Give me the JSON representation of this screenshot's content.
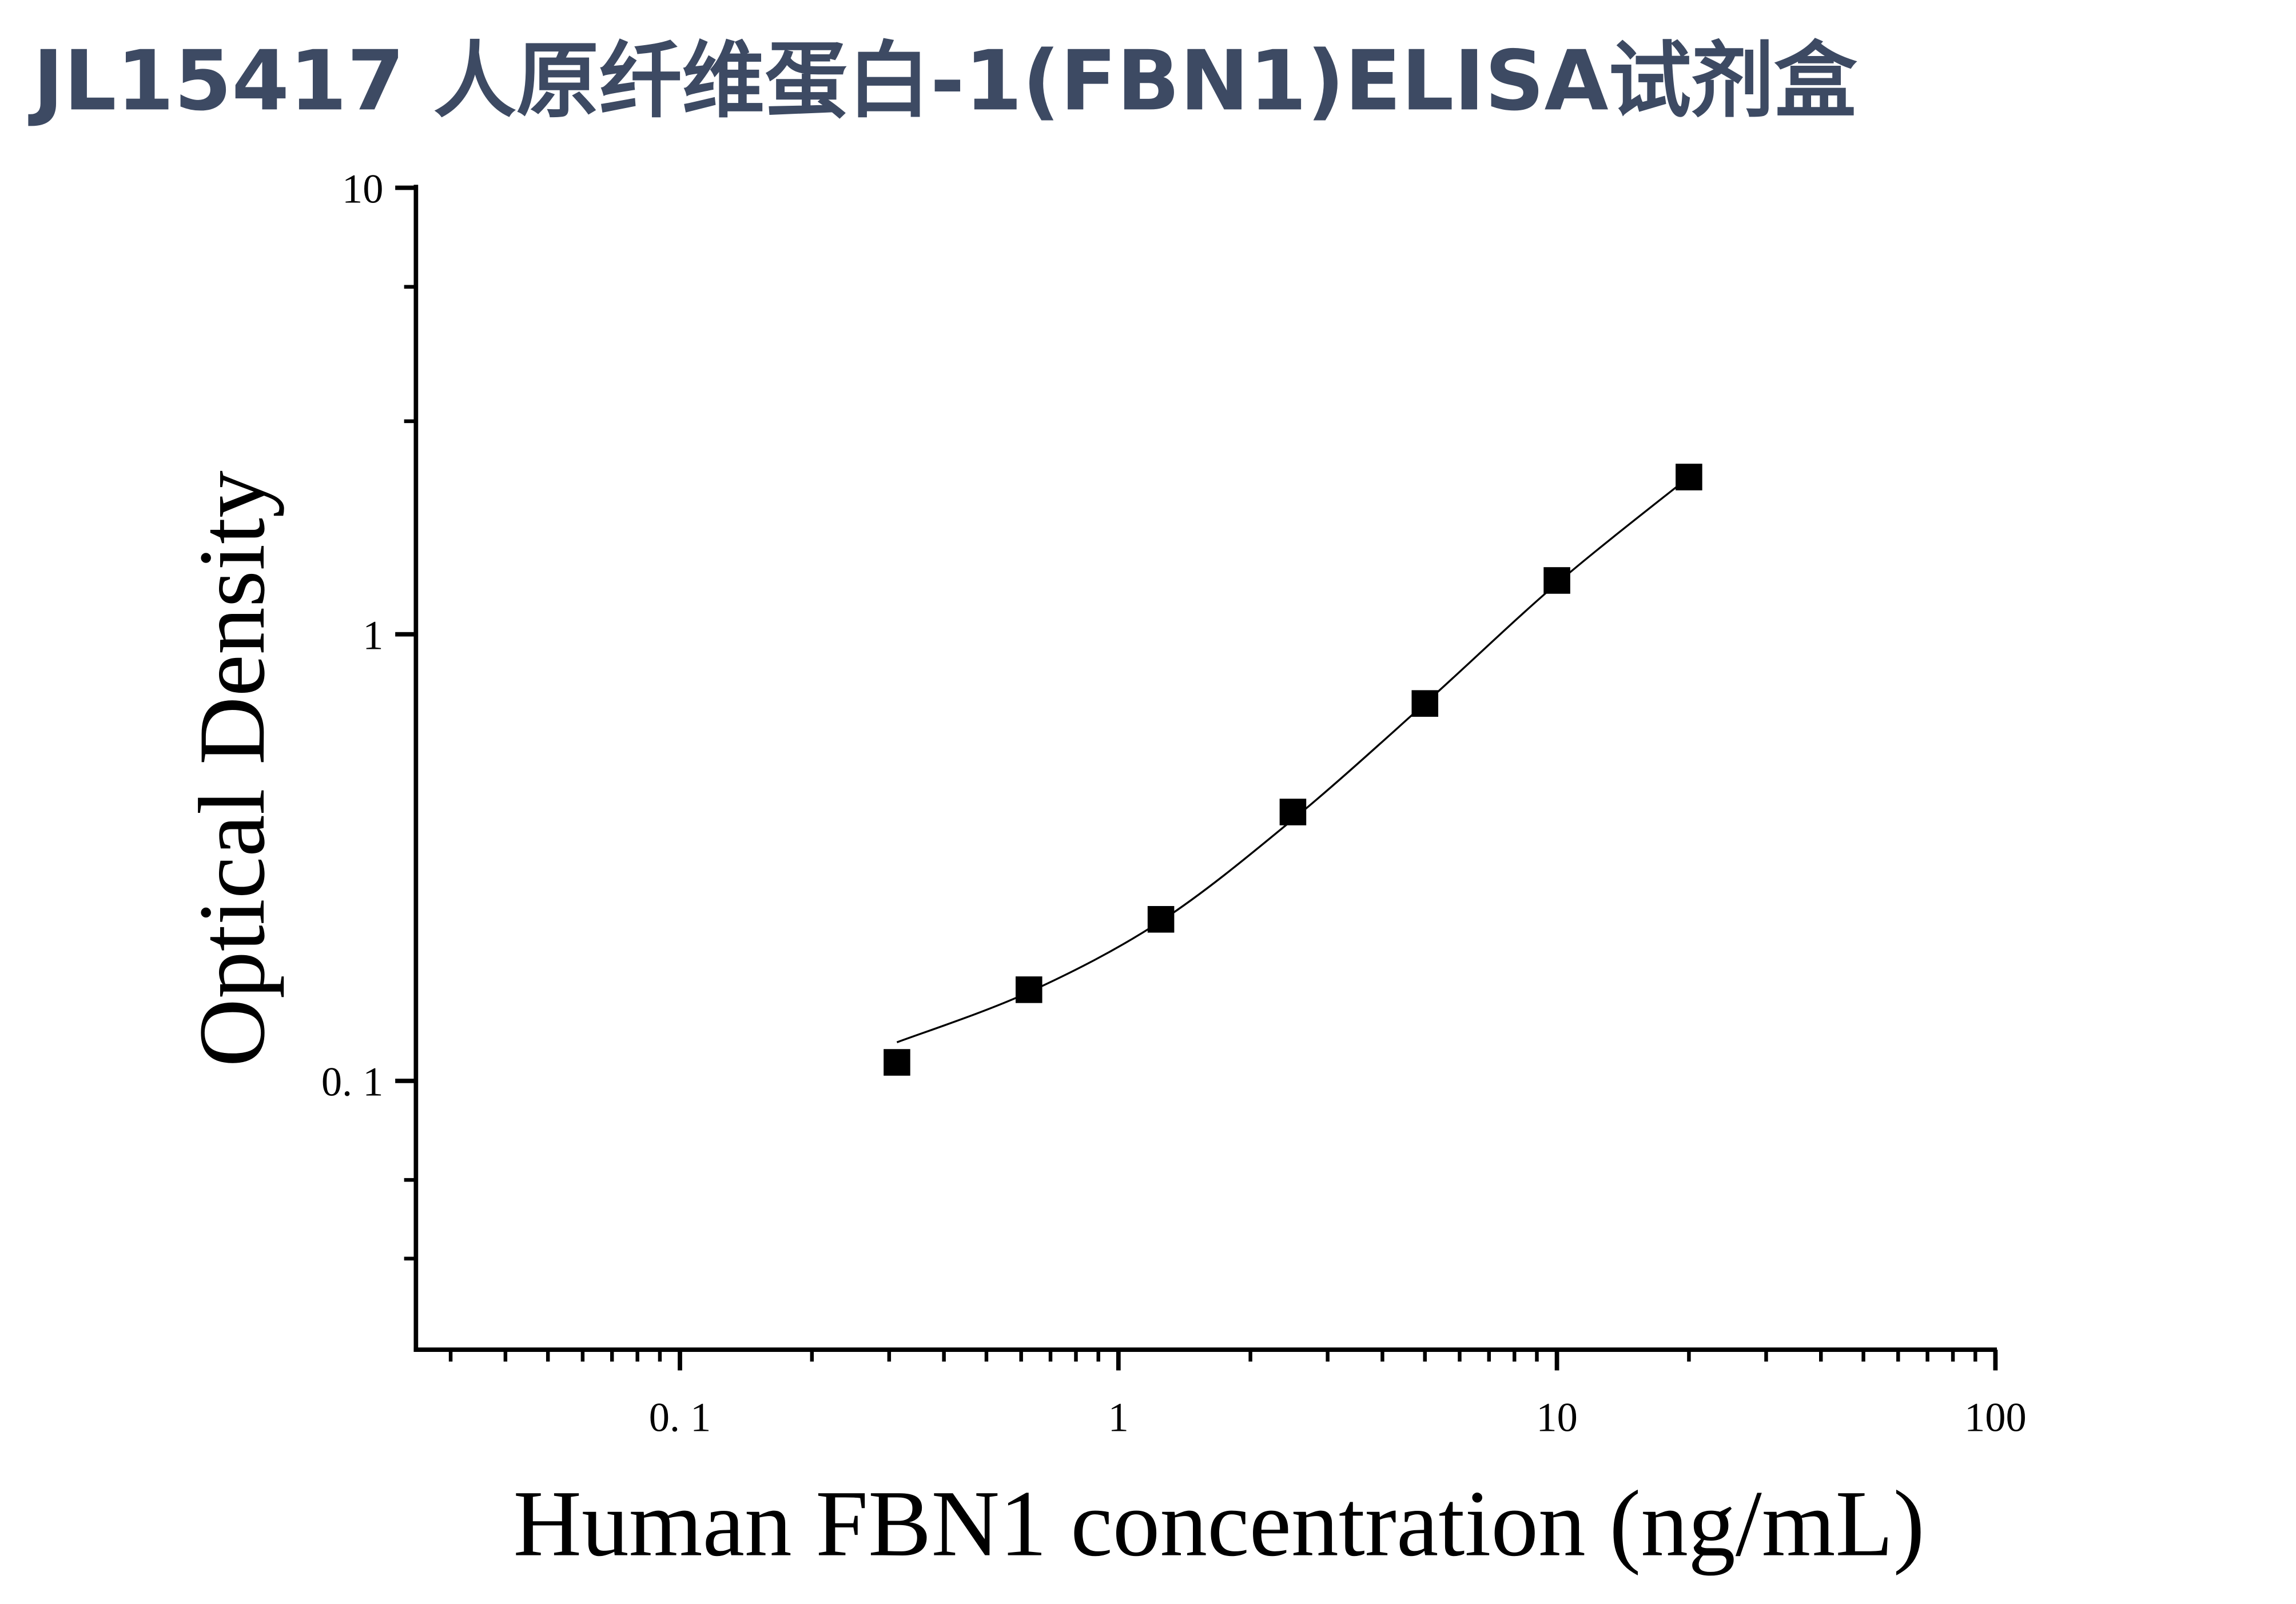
{
  "chart_data": {
    "type": "scatter",
    "title": "JL15417 人原纤维蛋白-1(FBN1)ELISA试剂盒",
    "x_label": "Human FBN1 concentration (ng/mL)",
    "y_label": "Optical Density",
    "log_x": true,
    "log_y": true,
    "xlim": [
      0.025,
      100
    ],
    "ylim": [
      0.025,
      10
    ],
    "xticks": [
      {
        "value": 0.1,
        "label": "0. 1"
      },
      1,
      10,
      100
    ],
    "yticks": [
      {
        "value": 0.1,
        "label": "0. 1"
      },
      1,
      10
    ],
    "xminor": [
      0.03,
      0.04,
      0.05,
      0.06,
      0.07,
      0.08,
      0.09,
      0.2,
      0.3,
      0.4,
      0.5,
      0.6,
      0.7,
      0.8,
      0.9,
      2,
      3,
      4,
      5,
      6,
      7,
      8,
      9,
      20,
      30,
      40,
      50,
      60,
      70,
      80,
      90
    ],
    "yminor": [
      0.04,
      0.06,
      3,
      6
    ],
    "series": [
      {
        "marker": "square",
        "color": "#000000",
        "x": [
          0.3125,
          0.625,
          1.25,
          2.5,
          5,
          10,
          20
        ],
        "values": [
          0.11,
          0.16,
          0.23,
          0.4,
          0.7,
          1.32,
          2.25
        ]
      },
      {
        "marker": "line",
        "color": "#000000",
        "x": [
          0.3125,
          0.625,
          1.25,
          2.5,
          5,
          10,
          20
        ],
        "values": [
          0.122,
          0.158,
          0.228,
          0.385,
          0.7,
          1.3,
          2.25
        ]
      }
    ]
  }
}
